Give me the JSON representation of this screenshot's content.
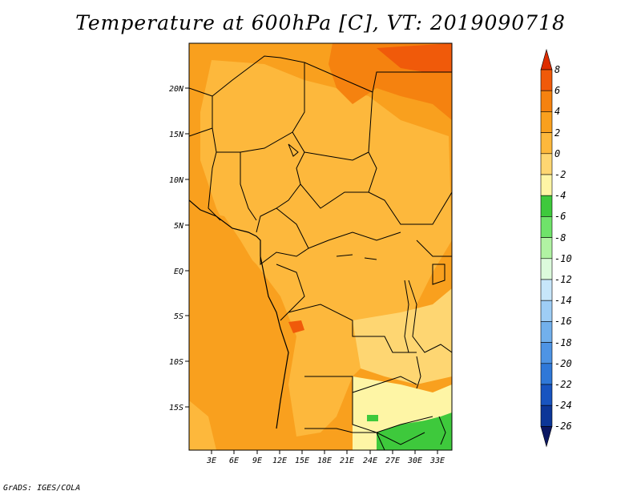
{
  "title": "Temperature at 600hPa [C], VT: 2019090718",
  "footer": "GrADS: IGES/COLA",
  "map": {
    "lat_labels": [
      "20N",
      "15N",
      "10N",
      "5N",
      "EQ",
      "5S",
      "10S",
      "15S"
    ],
    "lon_labels": [
      "3E",
      "6E",
      "9E",
      "12E",
      "15E",
      "18E",
      "21E",
      "24E",
      "27E",
      "30E",
      "33E"
    ]
  },
  "colorbar": {
    "labels": [
      "8",
      "6",
      "4",
      "2",
      "0",
      "-2",
      "-4",
      "-6",
      "-8",
      "-10",
      "-12",
      "-14",
      "-16",
      "-18",
      "-20",
      "-22",
      "-24",
      "-26"
    ],
    "colors": [
      "#dd2d00",
      "#f05a0a",
      "#f5820f",
      "#f9a01e",
      "#fdb83c",
      "#fed672",
      "#fef5a5",
      "#3ec93c",
      "#6fe36a",
      "#b1f3a3",
      "#dcfadc",
      "#c7e6fa",
      "#9ecdf5",
      "#72b0ec",
      "#4e94e4",
      "#2f78d8",
      "#1854c0",
      "#0c3698",
      "#0b1762"
    ]
  }
}
